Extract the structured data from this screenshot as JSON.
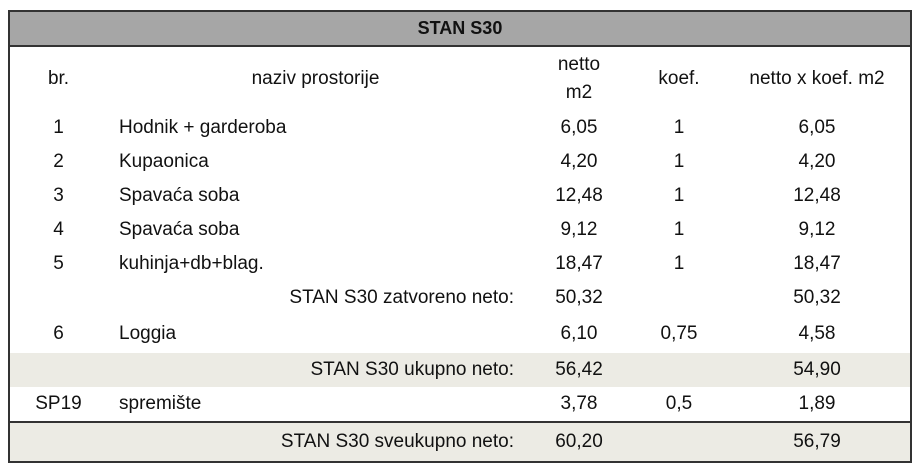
{
  "title": "STAN S30",
  "headers": {
    "br": "br.",
    "naziv": "naziv prostorije",
    "netto": "netto",
    "netto_unit": "m2",
    "koef": "koef.",
    "netto_koef": "netto x koef. m2"
  },
  "rows": [
    {
      "br": "1",
      "naziv": "Hodnik + garderoba",
      "netto": "6,05",
      "koef": "1",
      "netto_koef": "6,05"
    },
    {
      "br": "2",
      "naziv": "Kupaonica",
      "netto": "4,20",
      "koef": "1",
      "netto_koef": "4,20"
    },
    {
      "br": "3",
      "naziv": "Spavaća soba",
      "netto": "12,48",
      "koef": "1",
      "netto_koef": "12,48"
    },
    {
      "br": "4",
      "naziv": "Spavaća soba",
      "netto": "9,12",
      "koef": "1",
      "netto_koef": "9,12"
    },
    {
      "br": "5",
      "naziv": "kuhinja+db+blag.",
      "netto": "18,47",
      "koef": "1",
      "netto_koef": "18,47"
    }
  ],
  "zatvoreno": {
    "label": "STAN S30 zatvoreno neto:",
    "netto": "50,32",
    "netto_koef": "50,32"
  },
  "loggia": {
    "br": "6",
    "naziv": "Loggia",
    "netto": "6,10",
    "koef": "0,75",
    "netto_koef": "4,58"
  },
  "ukupno": {
    "label": "STAN S30 ukupno neto:",
    "netto": "56,42",
    "netto_koef": "54,90"
  },
  "spremiste": {
    "br": "SP19",
    "naziv": "spremište",
    "netto": "3,78",
    "koef": "0,5",
    "netto_koef": "1,89"
  },
  "sveukupno": {
    "label": "STAN S30 sveukupno neto:",
    "netto": "60,20",
    "netto_koef": "56,79"
  }
}
